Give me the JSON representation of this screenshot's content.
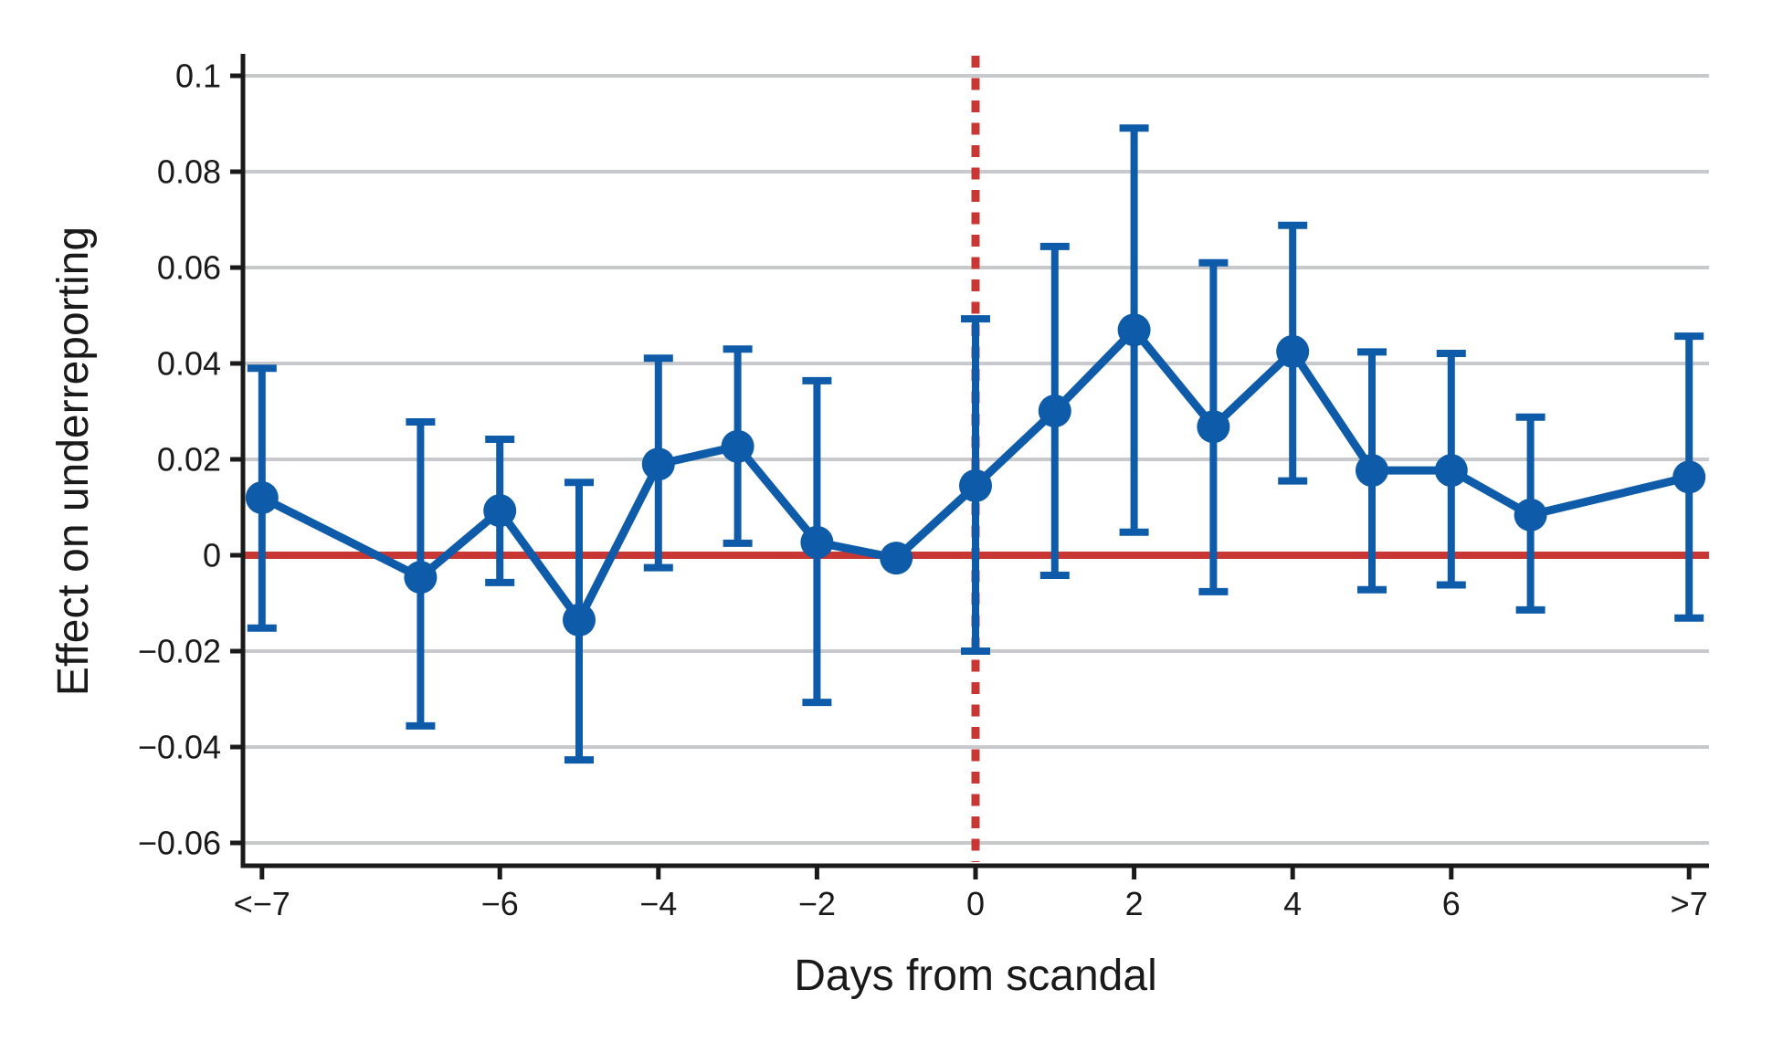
{
  "figure": {
    "background": "#ffffff",
    "type_note": "event-study line chart with confidence interval whiskers"
  },
  "colors": {
    "series": "#0e5ca9",
    "reference": "#c93735",
    "grid": "#c8c9cc",
    "axis": "#1a1a1a",
    "text": "#1a1a1a"
  },
  "chart_data": {
    "type": "line",
    "title": "",
    "xlabel": "Days from scandal",
    "ylabel": "Effect on underreporting",
    "x_categories": [
      "<-7",
      "-7",
      "-6",
      "-5",
      "-4",
      "-3",
      "-2",
      "-1",
      "0",
      "1",
      "2",
      "3",
      "4",
      "5",
      "6",
      "7",
      ">7"
    ],
    "x_units": [
      -9,
      -7,
      -6,
      -5,
      -4,
      -3,
      -2,
      -1,
      0,
      1,
      2,
      3,
      4,
      5,
      6,
      7,
      9
    ],
    "values": [
      0.012,
      -0.0046,
      0.0093,
      -0.0135,
      0.019,
      0.0227,
      0.0027,
      -0.0006,
      0.0145,
      0.0301,
      0.047,
      0.0268,
      0.0425,
      0.0177,
      0.0177,
      0.0084,
      0.0163
    ],
    "ci_low": [
      -0.0152,
      -0.0356,
      -0.0057,
      -0.0427,
      -0.0026,
      0.0025,
      -0.0307,
      null,
      -0.02,
      -0.0042,
      0.0048,
      -0.0076,
      0.0155,
      -0.0072,
      -0.0062,
      -0.0114,
      -0.0131
    ],
    "ci_high": [
      0.039,
      0.0278,
      0.0242,
      0.0152,
      0.0411,
      0.043,
      0.0364,
      null,
      0.0493,
      0.0644,
      0.0891,
      0.061,
      0.0688,
      0.0424,
      0.0421,
      0.0288,
      0.0457
    ],
    "y_ticks": [
      0.1,
      0.08,
      0.06,
      0.04,
      0.02,
      0,
      -0.02,
      -0.04,
      -0.06
    ],
    "y_tick_labels": [
      "0.1",
      "0.08",
      "0.06",
      "0.04",
      "0.02",
      "0",
      "−0.02",
      "−0.04",
      "−0.06"
    ],
    "x_tick_units": [
      -9,
      -6,
      -4,
      -2,
      0,
      2,
      4,
      6,
      9
    ],
    "x_tick_labels": [
      "<−7",
      "−6",
      "−4",
      "−2",
      "0",
      "2",
      "4",
      "6",
      ">7"
    ],
    "ylim": [
      -0.065,
      0.105
    ],
    "reference_line_y": 0,
    "event_line_x": 0,
    "grid": true,
    "legend": false
  }
}
